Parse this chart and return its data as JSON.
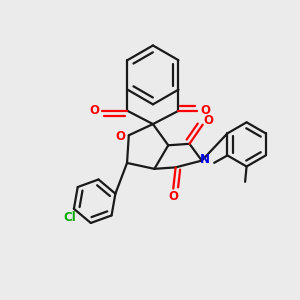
{
  "bg_color": "#ebebeb",
  "bond_color": "#1a1a1a",
  "oxygen_color": "#ff0000",
  "nitrogen_color": "#0000ee",
  "chlorine_color": "#00aa00",
  "line_width": 1.6,
  "figsize": [
    3.0,
    3.0
  ],
  "dpi": 100,
  "xlim": [
    0.0,
    10.0
  ],
  "ylim": [
    0.0,
    10.0
  ]
}
